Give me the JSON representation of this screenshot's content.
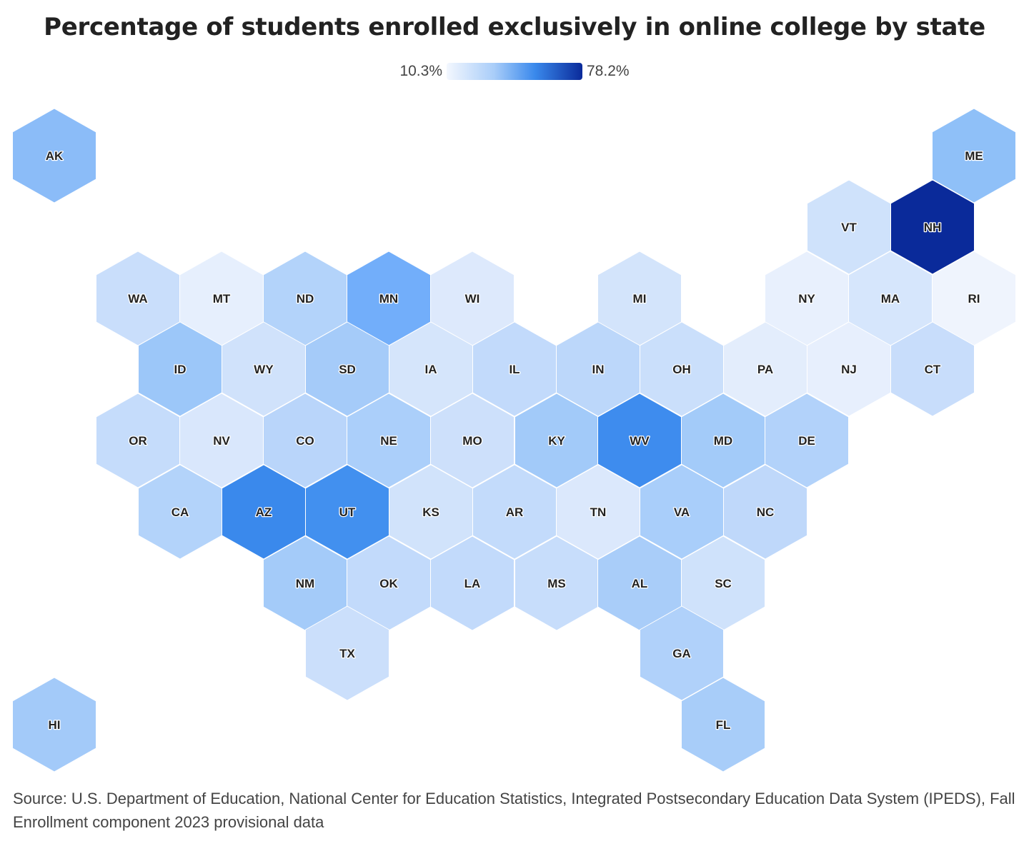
{
  "title": "Percentage of students enrolled exclusively in online college by state",
  "legend": {
    "min_label": "10.3%",
    "max_label": "78.2%",
    "min": 10.3,
    "max": 78.2,
    "color_low": "#f3f7fe",
    "color_high": "#0a2a9a"
  },
  "source": "Source: U.S. Department of Education, National Center for Education Statistics, Integrated Postsecondary Education Data System (IPEDS), Fall Enrollment component 2023 provisional data",
  "chart_data": {
    "type": "hex-tile choropleth",
    "states": [
      {
        "abbr": "AK",
        "color": "#8bbcf8"
      },
      {
        "abbr": "ME",
        "color": "#8fc0f8"
      },
      {
        "abbr": "VT",
        "color": "#cfe2fb"
      },
      {
        "abbr": "NH",
        "color": "#0a2a9a"
      },
      {
        "abbr": "WA",
        "color": "#c9defb"
      },
      {
        "abbr": "MT",
        "color": "#e6effd"
      },
      {
        "abbr": "ND",
        "color": "#b3d3fa"
      },
      {
        "abbr": "MN",
        "color": "#72aefa"
      },
      {
        "abbr": "WI",
        "color": "#dde9fc"
      },
      {
        "abbr": "MI",
        "color": "#d3e4fb"
      },
      {
        "abbr": "NY",
        "color": "#e8f0fd"
      },
      {
        "abbr": "MA",
        "color": "#d6e6fc"
      },
      {
        "abbr": "RI",
        "color": "#eff4fd"
      },
      {
        "abbr": "ID",
        "color": "#9cc7f9"
      },
      {
        "abbr": "WY",
        "color": "#d0e2fb"
      },
      {
        "abbr": "SD",
        "color": "#a5cbf9"
      },
      {
        "abbr": "IA",
        "color": "#d5e5fb"
      },
      {
        "abbr": "IL",
        "color": "#c2dafb"
      },
      {
        "abbr": "IN",
        "color": "#bcd7fa"
      },
      {
        "abbr": "OH",
        "color": "#cadffb"
      },
      {
        "abbr": "PA",
        "color": "#e3edfc"
      },
      {
        "abbr": "NJ",
        "color": "#e7effd"
      },
      {
        "abbr": "CT",
        "color": "#c8ddfb"
      },
      {
        "abbr": "OR",
        "color": "#c5dcfb"
      },
      {
        "abbr": "NV",
        "color": "#d9e7fc"
      },
      {
        "abbr": "CO",
        "color": "#b9d5fa"
      },
      {
        "abbr": "NE",
        "color": "#abcffa"
      },
      {
        "abbr": "MO",
        "color": "#cde0fb"
      },
      {
        "abbr": "KY",
        "color": "#a2caf9"
      },
      {
        "abbr": "WV",
        "color": "#3e8cee"
      },
      {
        "abbr": "MD",
        "color": "#a3cbf9"
      },
      {
        "abbr": "DE",
        "color": "#b2d2fa"
      },
      {
        "abbr": "CA",
        "color": "#b3d3fa"
      },
      {
        "abbr": "AZ",
        "color": "#3a89ec"
      },
      {
        "abbr": "UT",
        "color": "#4290ef"
      },
      {
        "abbr": "KS",
        "color": "#d1e3fb"
      },
      {
        "abbr": "AR",
        "color": "#c3dbfb"
      },
      {
        "abbr": "TN",
        "color": "#dbe8fc"
      },
      {
        "abbr": "VA",
        "color": "#a9cefa"
      },
      {
        "abbr": "NC",
        "color": "#bfd8fa"
      },
      {
        "abbr": "NM",
        "color": "#a4cbf9"
      },
      {
        "abbr": "OK",
        "color": "#c2dafb"
      },
      {
        "abbr": "LA",
        "color": "#c2dafb"
      },
      {
        "abbr": "MS",
        "color": "#c7ddfb"
      },
      {
        "abbr": "AL",
        "color": "#a9cdf9"
      },
      {
        "abbr": "SC",
        "color": "#cfe2fb"
      },
      {
        "abbr": "TX",
        "color": "#cbdffb"
      },
      {
        "abbr": "GA",
        "color": "#b0d1fa"
      },
      {
        "abbr": "HI",
        "color": "#a3caf9"
      },
      {
        "abbr": "FL",
        "color": "#a8cdf9"
      }
    ]
  }
}
